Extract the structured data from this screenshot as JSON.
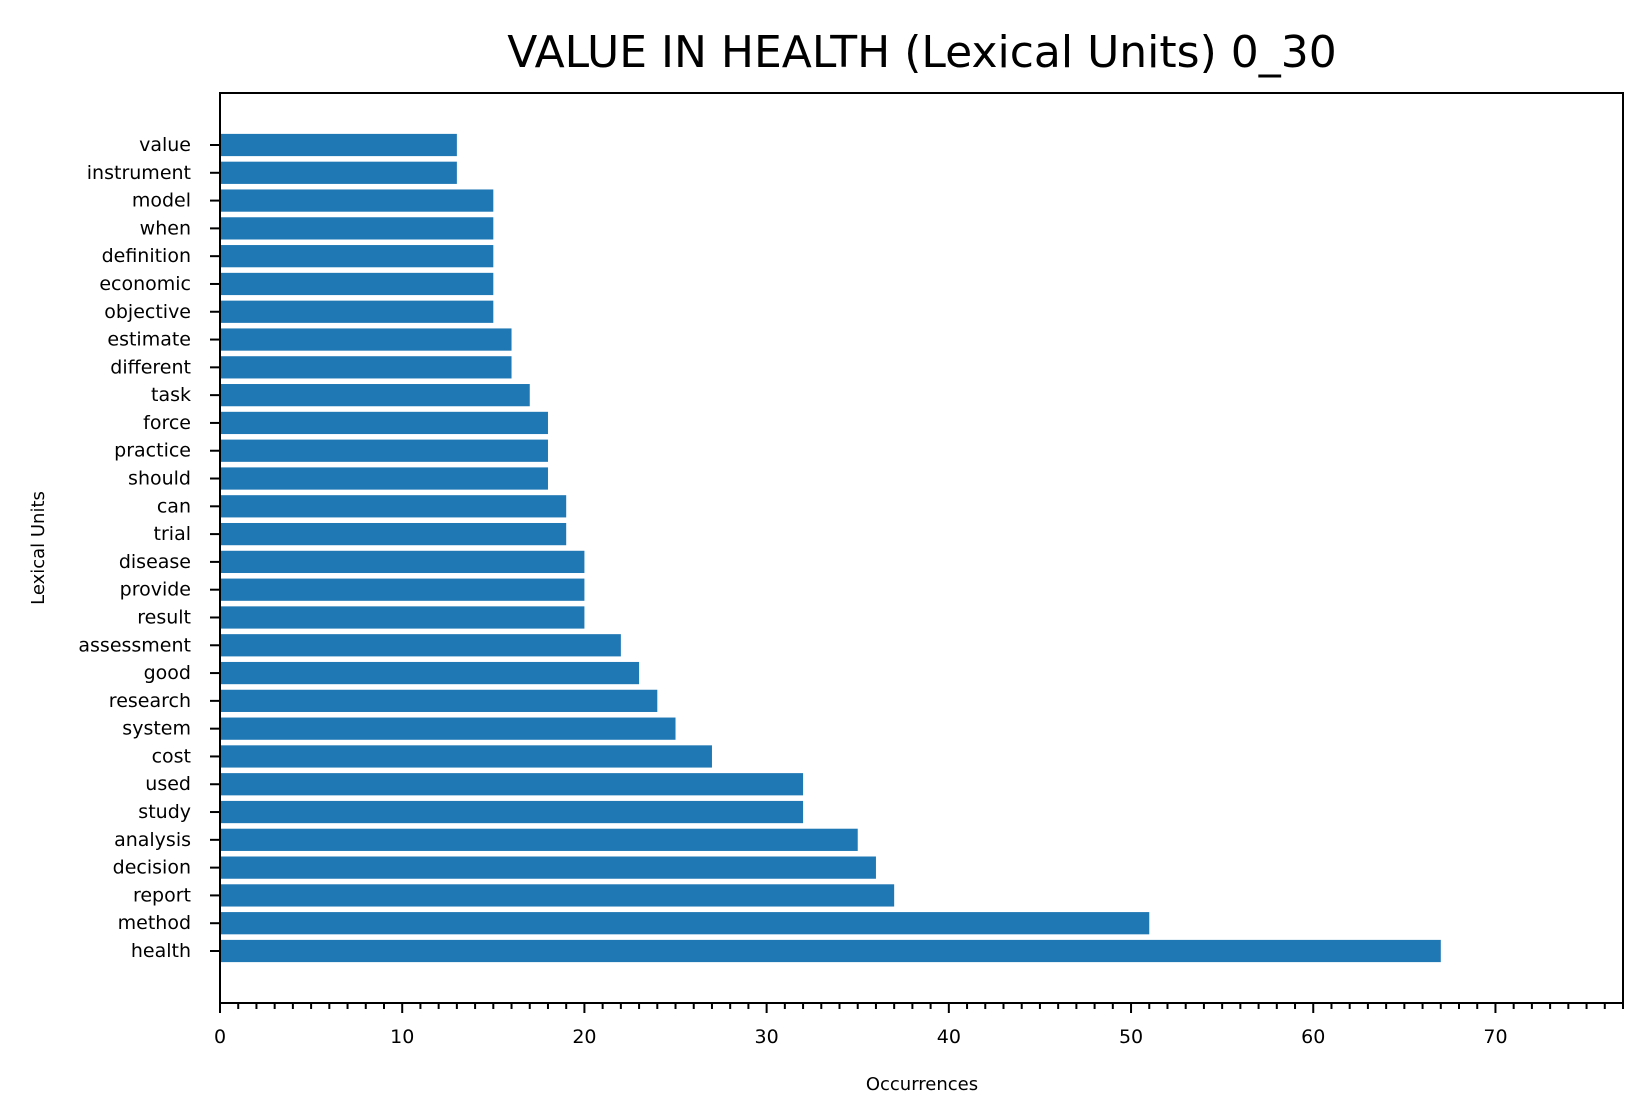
{
  "chart_data": {
    "type": "bar",
    "orientation": "horizontal",
    "title": "VALUE IN HEALTH (Lexical Units) 0_30",
    "xlabel": "Occurrences",
    "ylabel": "Lexical Units",
    "xlim": [
      0,
      77
    ],
    "x_major_ticks": [
      0,
      10,
      20,
      30,
      40,
      50,
      60,
      70
    ],
    "x_minor_tick_step": 1,
    "grid": false,
    "legend": "none",
    "colors": {
      "bar": "#1f77b4",
      "axis": "#000000"
    },
    "categories": [
      "value",
      "instrument",
      "model",
      "when",
      "definition",
      "economic",
      "objective",
      "estimate",
      "different",
      "task",
      "force",
      "practice",
      "should",
      "can",
      "trial",
      "disease",
      "provide",
      "result",
      "assessment",
      "good",
      "research",
      "system",
      "cost",
      "used",
      "study",
      "analysis",
      "decision",
      "report",
      "method",
      "health"
    ],
    "values": [
      13,
      13,
      15,
      15,
      15,
      15,
      15,
      16,
      16,
      17,
      18,
      18,
      18,
      19,
      19,
      20,
      20,
      20,
      22,
      23,
      24,
      25,
      27,
      32,
      32,
      35,
      36,
      37,
      51,
      67
    ]
  }
}
